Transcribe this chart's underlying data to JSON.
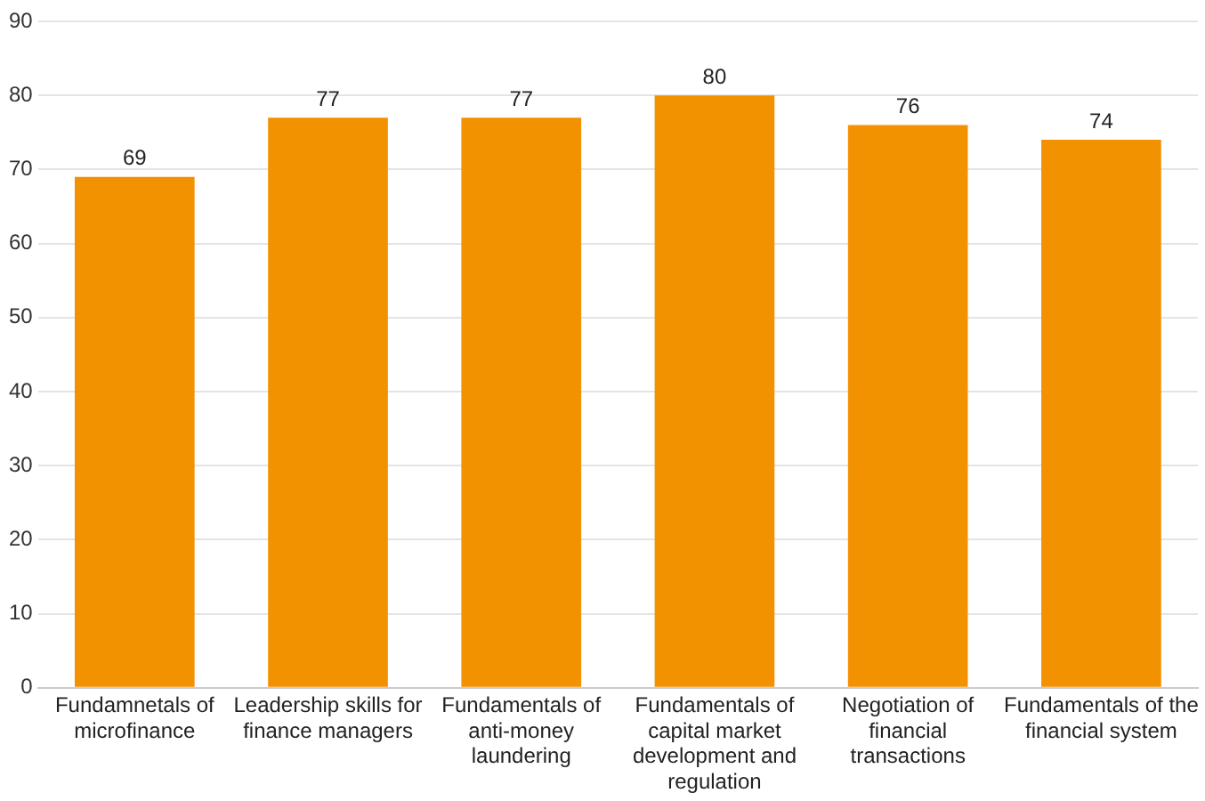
{
  "chart_data": {
    "type": "bar",
    "categories": [
      "Fundamnetals of microfinance",
      "Leadership skills for finance managers",
      "Fundamentals of anti-money laundering",
      "Fundamentals of capital market development and regulation",
      "Negotiation of financial transactions",
      "Fundamentals of the financial system"
    ],
    "values": [
      69,
      77,
      77,
      80,
      76,
      74
    ],
    "color": "#f39200",
    "ylim": [
      0,
      90
    ],
    "yticks": [
      0,
      10,
      20,
      30,
      40,
      50,
      60,
      70,
      80,
      90
    ],
    "grid": "y",
    "data_labels": true,
    "legend": false
  }
}
